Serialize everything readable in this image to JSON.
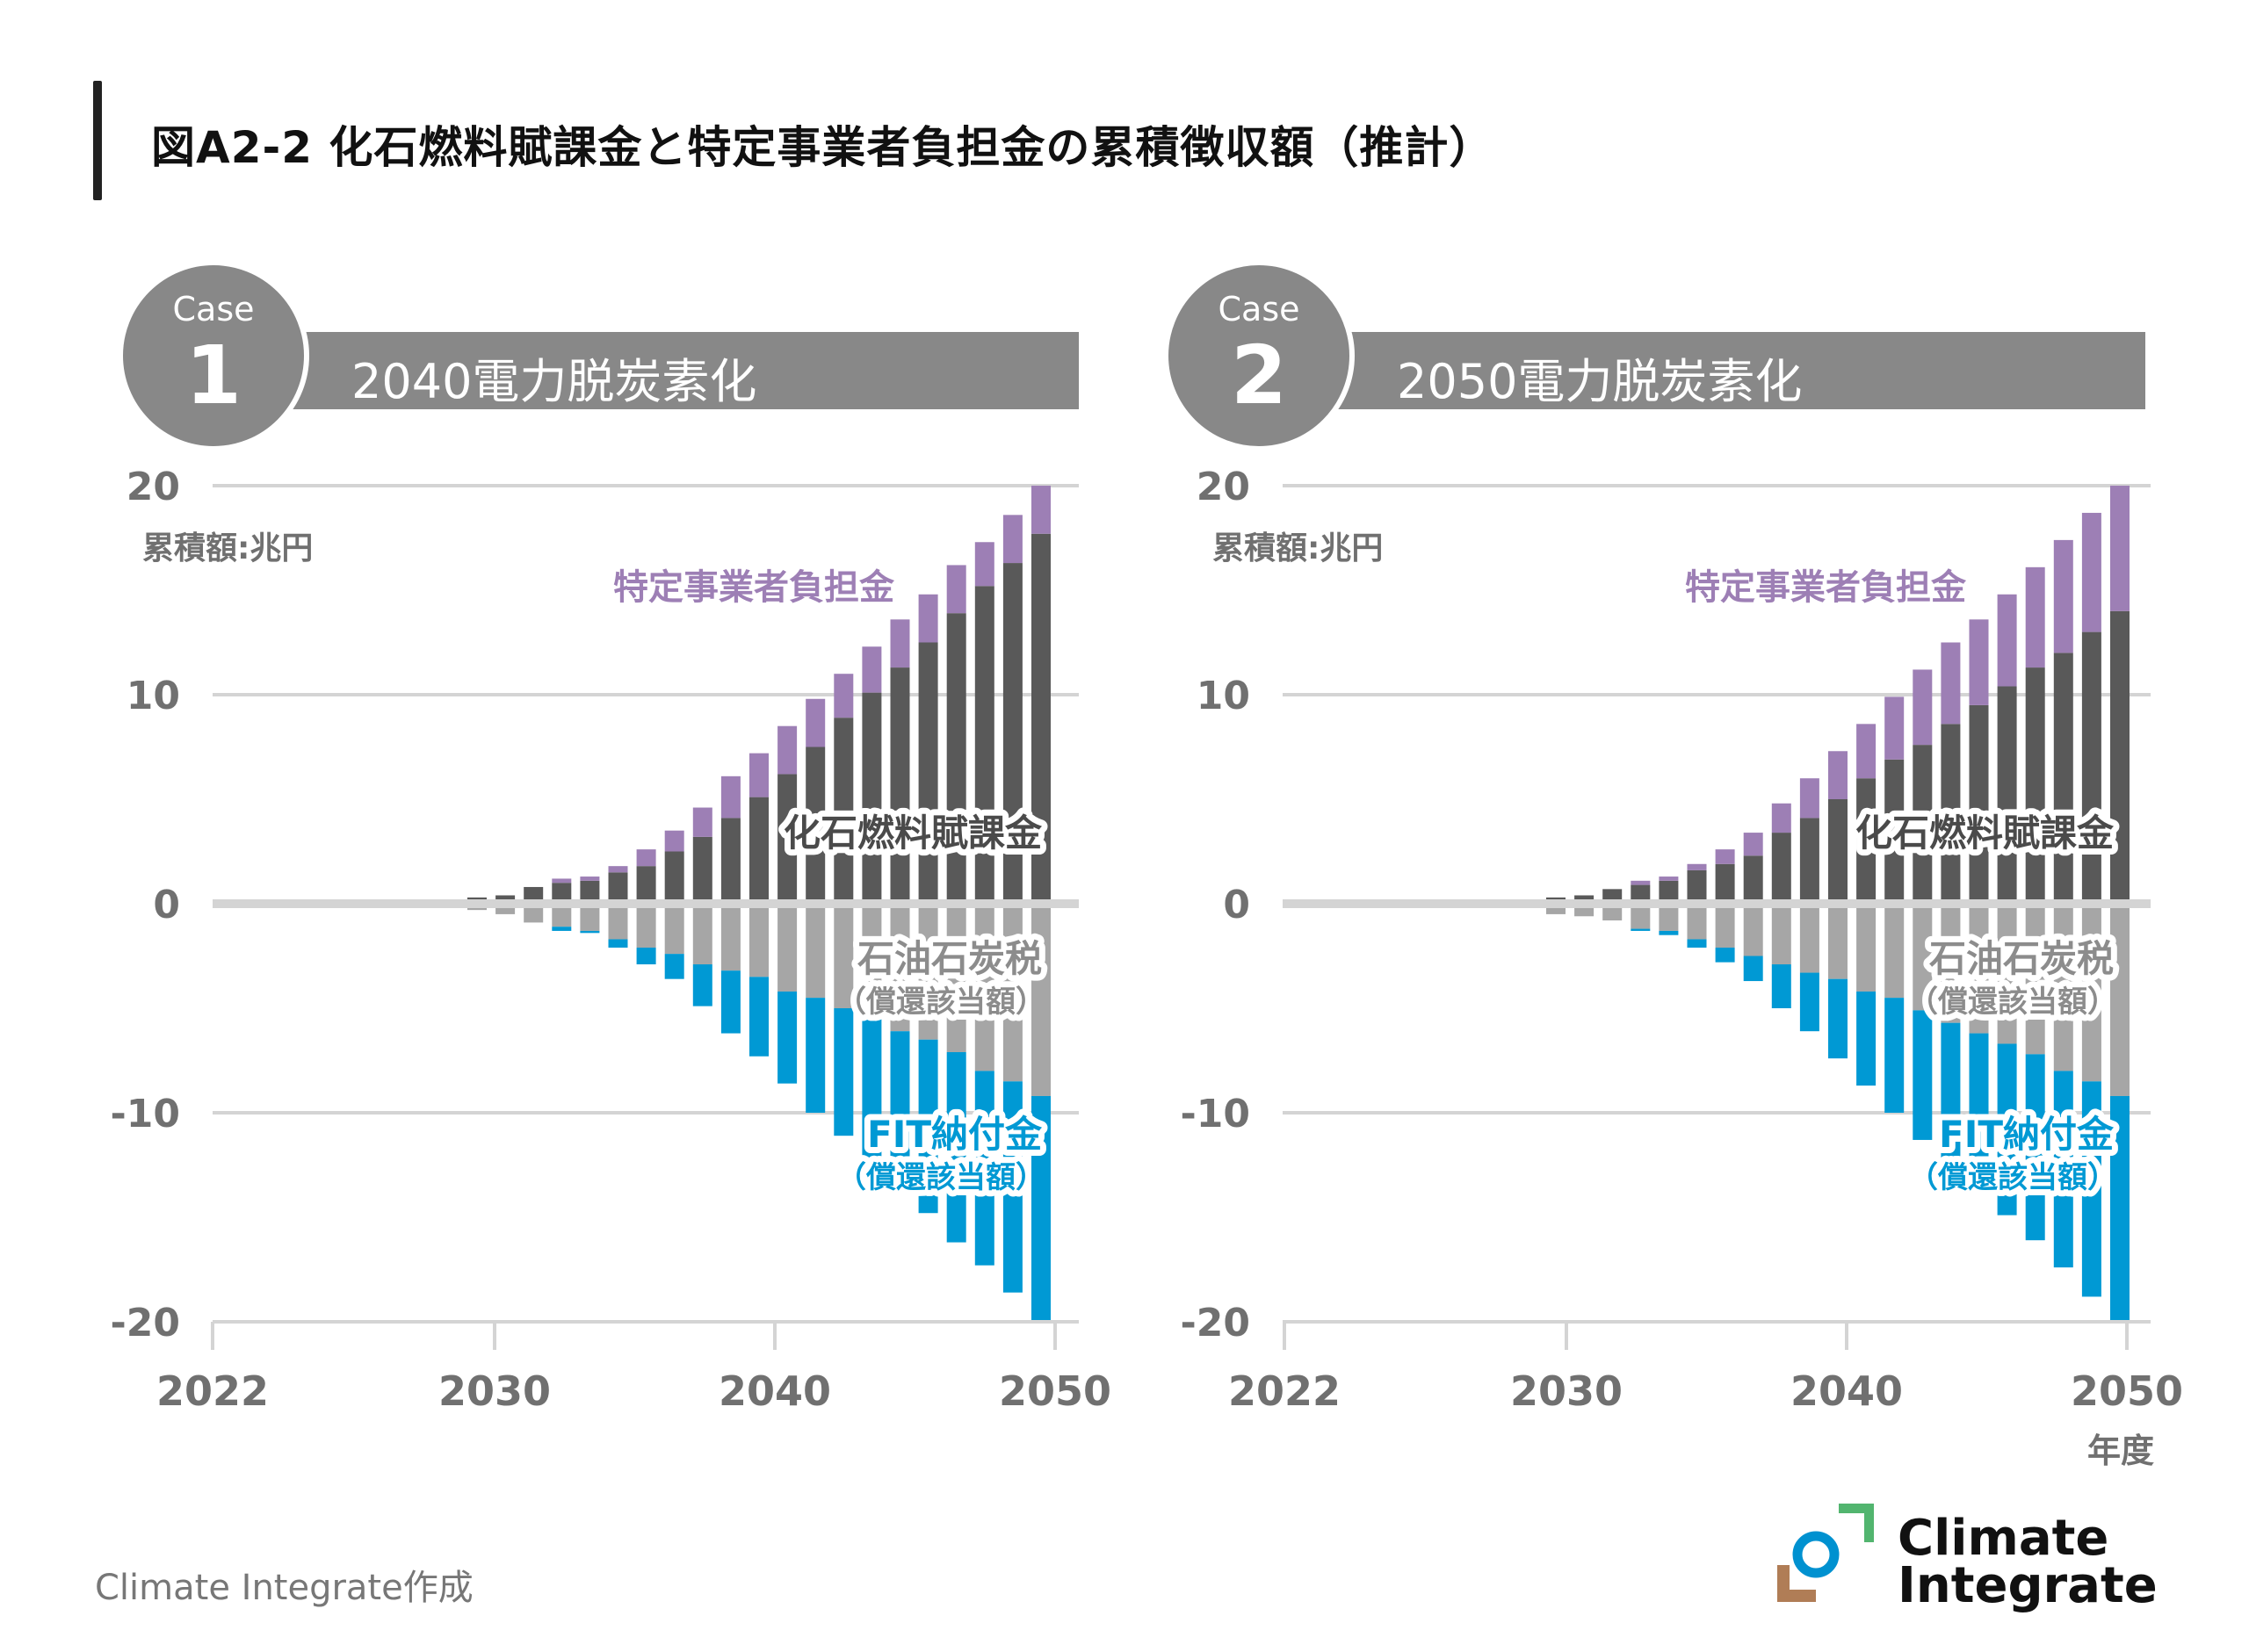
{
  "title": "図A2-2 化石燃料賦課金と特定事業者負担金の累積徴収額（推計）",
  "colors": {
    "fossil_levy": "#595959",
    "specified_operator": "#9d7fb5",
    "petroleum_coal_tax": "#a6a6a6",
    "fit_payment": "#0099d4",
    "grid": "#d4d4d4",
    "axis_text": "#707070",
    "banner": "#888888"
  },
  "footer": {
    "credit": "Climate Integrate作成",
    "logo_line1": "Climate",
    "logo_line2": "Integrate"
  },
  "chart_data": [
    {
      "type": "bar",
      "stacked": true,
      "case_word": "Case",
      "case_number": "1",
      "title": "2040電力脱炭素化",
      "ylabel": "累積額:兆円",
      "xlabel": "",
      "ylim": [
        -20,
        20
      ],
      "yticks": [
        20,
        10,
        0,
        -10,
        -20
      ],
      "xticks": [
        "2022",
        "2030",
        "2040",
        "2050"
      ],
      "grid": true,
      "categories": [
        "2028",
        "2029",
        "2030",
        "2031",
        "2032",
        "2033",
        "2034",
        "2035",
        "2036",
        "2037",
        "2038",
        "2039",
        "2040",
        "2041",
        "2042",
        "2043",
        "2044",
        "2045",
        "2046",
        "2047",
        "2048",
        "2049"
      ],
      "series": [
        {
          "name": "化石燃料賦課金",
          "key": "fossil_levy",
          "sign": 1,
          "values": [
            0.1,
            0.3,
            0.4,
            0.8,
            1.0,
            1.1,
            1.5,
            1.8,
            2.5,
            3.2,
            4.1,
            5.1,
            6.2,
            7.5,
            8.9,
            10.1,
            11.3,
            12.5,
            13.9,
            15.2,
            16.3,
            17.7
          ]
        },
        {
          "name": "特定事業者負担金",
          "key": "specified_operator",
          "sign": 1,
          "values": [
            0,
            0,
            0,
            0,
            0.2,
            0.2,
            0.3,
            0.8,
            1.0,
            1.4,
            2.0,
            2.1,
            2.3,
            2.3,
            2.1,
            2.2,
            2.3,
            2.3,
            2.3,
            2.1,
            2.3,
            2.3
          ]
        },
        {
          "name": "石油石炭税（償還該当額）",
          "key": "petroleum_coal_tax",
          "sign": -1,
          "values": [
            0,
            0.3,
            0.5,
            0.9,
            1.1,
            1.3,
            1.7,
            2.1,
            2.4,
            2.9,
            3.2,
            3.5,
            4.2,
            4.5,
            5.0,
            5.5,
            6.1,
            6.5,
            7.1,
            8.0,
            8.5,
            9.2
          ]
        },
        {
          "name": "FIT納付金（償還該当額）",
          "key": "fit_payment",
          "sign": -1,
          "values": [
            0,
            0,
            0,
            0,
            0.2,
            0.1,
            0.4,
            0.8,
            1.2,
            2.0,
            3.0,
            3.8,
            4.4,
            5.5,
            6.1,
            6.8,
            7.4,
            8.3,
            9.1,
            9.3,
            10.1,
            10.8
          ]
        }
      ],
      "annotations": [
        {
          "text": "特定事業者負担金",
          "series": "specified_operator"
        },
        {
          "text": "化石燃料賦課金",
          "series": "fossil_levy"
        },
        {
          "text": "石油石炭税",
          "sub": "（償還該当額）",
          "series": "petroleum_coal_tax"
        },
        {
          "text": "FIT納付金",
          "sub": "（償還該当額）",
          "series": "fit_payment"
        }
      ]
    },
    {
      "type": "bar",
      "stacked": true,
      "case_word": "Case",
      "case_number": "2",
      "title": "2050電力脱炭素化",
      "ylabel": "累積額:兆円",
      "xlabel": "年度",
      "ylim": [
        -20,
        20
      ],
      "yticks": [
        20,
        10,
        0,
        -10,
        -20
      ],
      "xticks": [
        "2022",
        "2030",
        "2040",
        "2050"
      ],
      "grid": true,
      "categories": [
        "2028",
        "2029",
        "2030",
        "2031",
        "2032",
        "2033",
        "2034",
        "2035",
        "2036",
        "2037",
        "2038",
        "2039",
        "2040",
        "2041",
        "2042",
        "2043",
        "2044",
        "2045",
        "2046",
        "2047",
        "2048",
        "2049"
      ],
      "series": [
        {
          "name": "化石燃料賦課金",
          "key": "fossil_levy",
          "sign": 1,
          "values": [
            0.1,
            0.3,
            0.4,
            0.7,
            0.9,
            1.1,
            1.6,
            1.9,
            2.3,
            3.4,
            4.1,
            5.0,
            6.0,
            6.9,
            7.6,
            8.6,
            9.5,
            10.4,
            11.3,
            12.0,
            13.0,
            14.0
          ]
        },
        {
          "name": "特定事業者負担金",
          "key": "specified_operator",
          "sign": 1,
          "values": [
            0,
            0,
            0,
            0,
            0.2,
            0.2,
            0.3,
            0.7,
            1.1,
            1.4,
            1.9,
            2.3,
            2.6,
            3.0,
            3.6,
            3.9,
            4.1,
            4.4,
            4.8,
            5.4,
            5.7,
            6.0
          ]
        },
        {
          "name": "石油石炭税（償還該当額）",
          "key": "petroleum_coal_tax",
          "sign": -1,
          "values": [
            0,
            0.5,
            0.6,
            0.8,
            1.2,
            1.3,
            1.7,
            2.1,
            2.5,
            2.9,
            3.3,
            3.6,
            4.2,
            4.5,
            5.1,
            5.7,
            6.2,
            6.7,
            7.2,
            8.0,
            8.5,
            9.2
          ]
        },
        {
          "name": "FIT納付金（償還該当額）",
          "key": "fit_payment",
          "sign": -1,
          "values": [
            0,
            0,
            0,
            0,
            0.1,
            0.2,
            0.4,
            0.7,
            1.2,
            2.1,
            2.8,
            3.8,
            4.5,
            5.5,
            6.2,
            6.7,
            7.4,
            8.2,
            8.9,
            9.4,
            10.3,
            10.8
          ]
        }
      ],
      "annotations": [
        {
          "text": "特定事業者負担金",
          "series": "specified_operator"
        },
        {
          "text": "化石燃料賦課金",
          "series": "fossil_levy"
        },
        {
          "text": "石油石炭税",
          "sub": "（償還該当額）",
          "series": "petroleum_coal_tax"
        },
        {
          "text": "FIT納付金",
          "sub": "（償還該当額）",
          "series": "fit_payment"
        }
      ]
    }
  ]
}
